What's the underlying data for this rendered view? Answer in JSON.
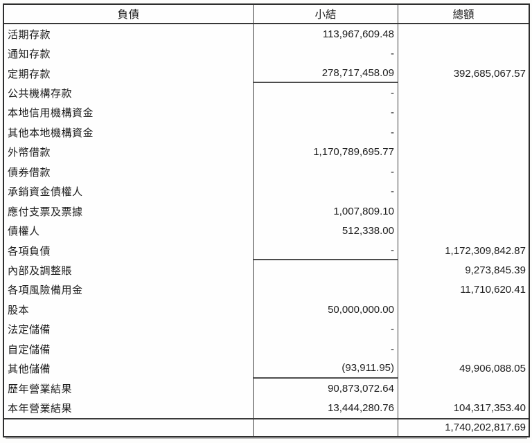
{
  "table": {
    "columns": {
      "liabilities": "負債",
      "subtotal": "小結",
      "total": "總額"
    },
    "rows": [
      {
        "label": "活期存款",
        "subtotal": "113,967,609.48",
        "total": ""
      },
      {
        "label": "通知存款",
        "subtotal": "-",
        "total": ""
      },
      {
        "label": "定期存款",
        "subtotal": "278,717,458.09",
        "total": "392,685,067.57"
      },
      {
        "label": "公共機構存款",
        "subtotal": "-",
        "total": ""
      },
      {
        "label": "本地信用機構資金",
        "subtotal": "-",
        "total": ""
      },
      {
        "label": "其他本地機構資金",
        "subtotal": "-",
        "total": ""
      },
      {
        "label": "外幣借款",
        "subtotal": "1,170,789,695.77",
        "total": ""
      },
      {
        "label": "債券借款",
        "subtotal": "-",
        "total": ""
      },
      {
        "label": "承銷資金債權人",
        "subtotal": "-",
        "total": ""
      },
      {
        "label": "應付支票及票據",
        "subtotal": "1,007,809.10",
        "total": ""
      },
      {
        "label": "債權人",
        "subtotal": "512,338.00",
        "total": ""
      },
      {
        "label": "各項負債",
        "subtotal": "-",
        "total": "1,172,309,842.87"
      },
      {
        "label": "內部及調整賬",
        "subtotal": "",
        "total": "9,273,845.39"
      },
      {
        "label": "各項風險備用金",
        "subtotal": "",
        "total": "11,710,620.41"
      },
      {
        "label": "股本",
        "subtotal": "50,000,000.00",
        "total": ""
      },
      {
        "label": "法定儲備",
        "subtotal": "-",
        "total": ""
      },
      {
        "label": "自定儲備",
        "subtotal": "-",
        "total": ""
      },
      {
        "label": "其他儲備",
        "subtotal": "(93,911.95)",
        "total": "49,906,088.05"
      },
      {
        "label": "歷年營業結果",
        "subtotal": "90,873,072.64",
        "total": ""
      },
      {
        "label": "本年營業結果",
        "subtotal": "13,444,280.76",
        "total": "104,317,353.40"
      },
      {
        "label": "",
        "subtotal": "",
        "total": "1,740,202,817.69"
      }
    ],
    "colors": {
      "ink": "#1c1c1c",
      "rule": "#3a3a3a",
      "paper": "#fefefe"
    }
  }
}
